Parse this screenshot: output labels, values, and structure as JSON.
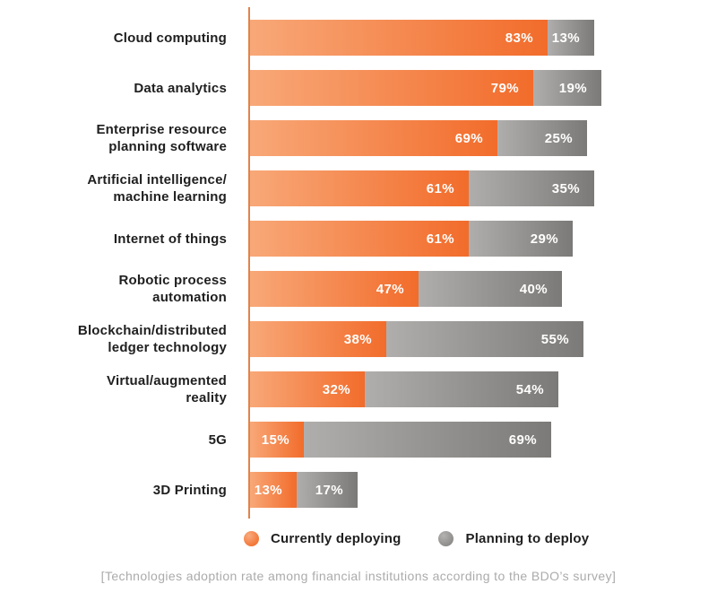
{
  "chart_data": {
    "type": "bar",
    "orientation": "horizontal",
    "stacked": true,
    "unit": "%",
    "xlim": [
      0,
      100
    ],
    "grid": false,
    "legend_position": "bottom",
    "categories": [
      [
        "Cloud computing"
      ],
      [
        "Data analytics"
      ],
      [
        "Enterprise resource",
        "planning software"
      ],
      [
        "Artificial intelligence/",
        "machine learning"
      ],
      [
        "Internet of things"
      ],
      [
        "Robotic process",
        "automation"
      ],
      [
        "Blockchain/distributed",
        "ledger technology"
      ],
      [
        "Virtual/augmented",
        "reality"
      ],
      [
        "5G"
      ],
      [
        "3D Printing"
      ]
    ],
    "series": [
      {
        "name": "Currently deploying",
        "values": [
          83,
          79,
          69,
          61,
          61,
          47,
          38,
          32,
          15,
          13
        ],
        "gradient": [
          "#f8a878",
          "#f26c2b"
        ]
      },
      {
        "name": "Planning to deploy",
        "values": [
          13,
          19,
          25,
          35,
          29,
          40,
          55,
          54,
          69,
          17
        ],
        "gradient": [
          "#b0aeac",
          "#7c7a78"
        ]
      }
    ]
  },
  "legend": {
    "items": [
      {
        "label": "Currently deploying"
      },
      {
        "label": "Planning to deploy"
      }
    ]
  },
  "caption": "[Technologies adoption rate among financial institutions according to the BDO’s survey]",
  "colors": {
    "axis": "#e1824a",
    "label_text": "#1f1f1f",
    "value_text": "#ffffff",
    "caption_text": "#ababab",
    "background": "#ffffff"
  }
}
